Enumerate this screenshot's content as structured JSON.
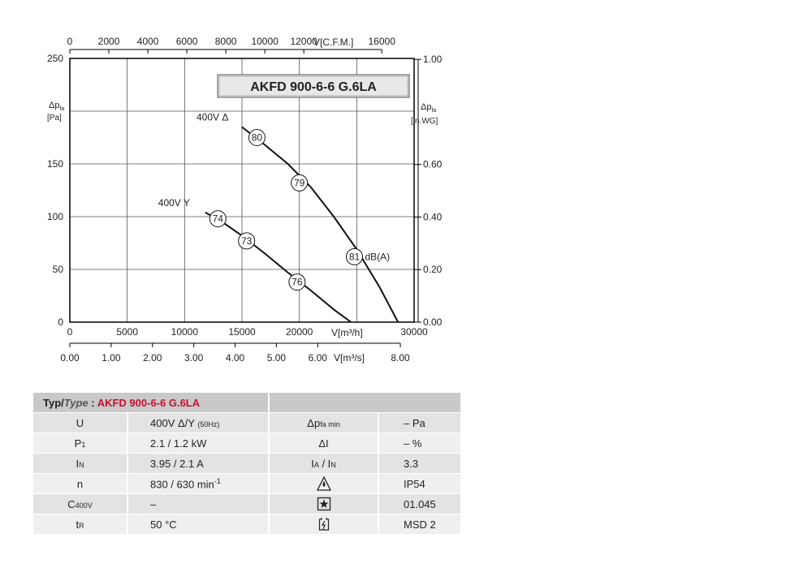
{
  "chart_data": {
    "type": "line",
    "title": "AKFD 900-6-6 G.6LA",
    "xlabel": "V[m³/h]",
    "xlim": [
      0,
      30000
    ],
    "ylim": [
      0,
      250
    ],
    "x_ticks": [
      0,
      5000,
      10000,
      15000,
      20000,
      30000
    ],
    "x_tick_labels": [
      "0",
      "5000",
      "10000",
      "15000",
      "20000",
      "30000"
    ],
    "y_ticks": [
      0,
      50,
      100,
      150,
      250
    ],
    "y_tick_labels": [
      "0",
      "50",
      "100",
      "150",
      "250"
    ],
    "y_label": "Δp",
    "y_label_sub": "fa",
    "y_unit": "[Pa]",
    "top_axis": {
      "label": "V[C.F.M.]",
      "ticks": [
        0,
        2000,
        4000,
        6000,
        8000,
        10000,
        12000,
        16000
      ],
      "tick_labels": [
        "0",
        "2000",
        "4000",
        "6000",
        "8000",
        "10000",
        "12000",
        "16000"
      ]
    },
    "bottom_axis2": {
      "label": "V[m³/s]",
      "ticks": [
        0,
        1,
        2,
        3,
        4,
        5,
        6,
        8
      ],
      "tick_labels": [
        "0.00",
        "1.00",
        "2.00",
        "3.00",
        "4.00",
        "5.00",
        "6.00",
        "8.00"
      ]
    },
    "right_axis": {
      "label": "Δp",
      "label_sub": "fa",
      "unit": "[in.WG]",
      "ticks": [
        0,
        0.2,
        0.4,
        0.6,
        1.0
      ],
      "tick_labels": [
        "0.00",
        "0.20",
        "0.40",
        "0.60",
        "1.00"
      ]
    },
    "grid": true,
    "series": [
      {
        "name": "400V Δ",
        "x": [
          15000,
          17000,
          19000,
          21000,
          23000,
          25000,
          27000,
          28600
        ],
        "y": [
          185,
          168,
          150,
          128,
          100,
          69,
          33,
          0
        ],
        "markers": [
          {
            "x": 16300,
            "y": 175,
            "label": "80"
          },
          {
            "x": 20000,
            "y": 132,
            "label": "79"
          },
          {
            "x": 24800,
            "y": 62,
            "label": "81"
          }
        ]
      },
      {
        "name": "400V Y",
        "x": [
          11800,
          13000,
          15000,
          17000,
          19000,
          21000,
          23000,
          24500
        ],
        "y": [
          104,
          97,
          82,
          65,
          47,
          30,
          12,
          0
        ],
        "markers": [
          {
            "x": 12900,
            "y": 98,
            "label": "74"
          },
          {
            "x": 15400,
            "y": 77,
            "label": "73"
          },
          {
            "x": 19800,
            "y": 38,
            "label": "76"
          }
        ]
      }
    ],
    "annotation": "dB(A)"
  },
  "table": {
    "title_typ": "Typ/",
    "title_type": "Type",
    "title_colon": " : ",
    "title_model": "AKFD 900-6-6 G.6LA",
    "rows": [
      {
        "sym": "U",
        "sym_sub": "",
        "val": "400V Δ/Y",
        "val_small": "(50Hz)",
        "sym2": "Δp",
        "sym2_sub": "fa min",
        "val2": "– Pa"
      },
      {
        "sym": "P",
        "sym_sub": "1",
        "val": "2.1 / 1.2 kW",
        "val_small": "",
        "sym2": "ΔI",
        "sym2_sub": "",
        "val2": "– %"
      },
      {
        "sym": "I",
        "sym_sub": "N",
        "val": "3.95 / 2.1 A",
        "val_small": "",
        "sym2": "I",
        "sym2_sub": "A",
        "sym2_mid": " / I",
        "sym2_sub2": "N",
        "val2": "3.3"
      },
      {
        "sym": "n",
        "sym_sub": "",
        "val": "830 / 630  min",
        "val_sup": "-1",
        "sym2_icon": "ip-protection-icon",
        "val2": "IP54"
      },
      {
        "sym": "C",
        "sym_sub": "400V",
        "val": "–",
        "sym2_icon": "star-box-icon",
        "val2": "01.045"
      },
      {
        "sym": "t",
        "sym_sub": "R",
        "val": "50 °C",
        "sym2_icon": "motor-protection-icon",
        "val2": "MSD 2"
      }
    ]
  }
}
